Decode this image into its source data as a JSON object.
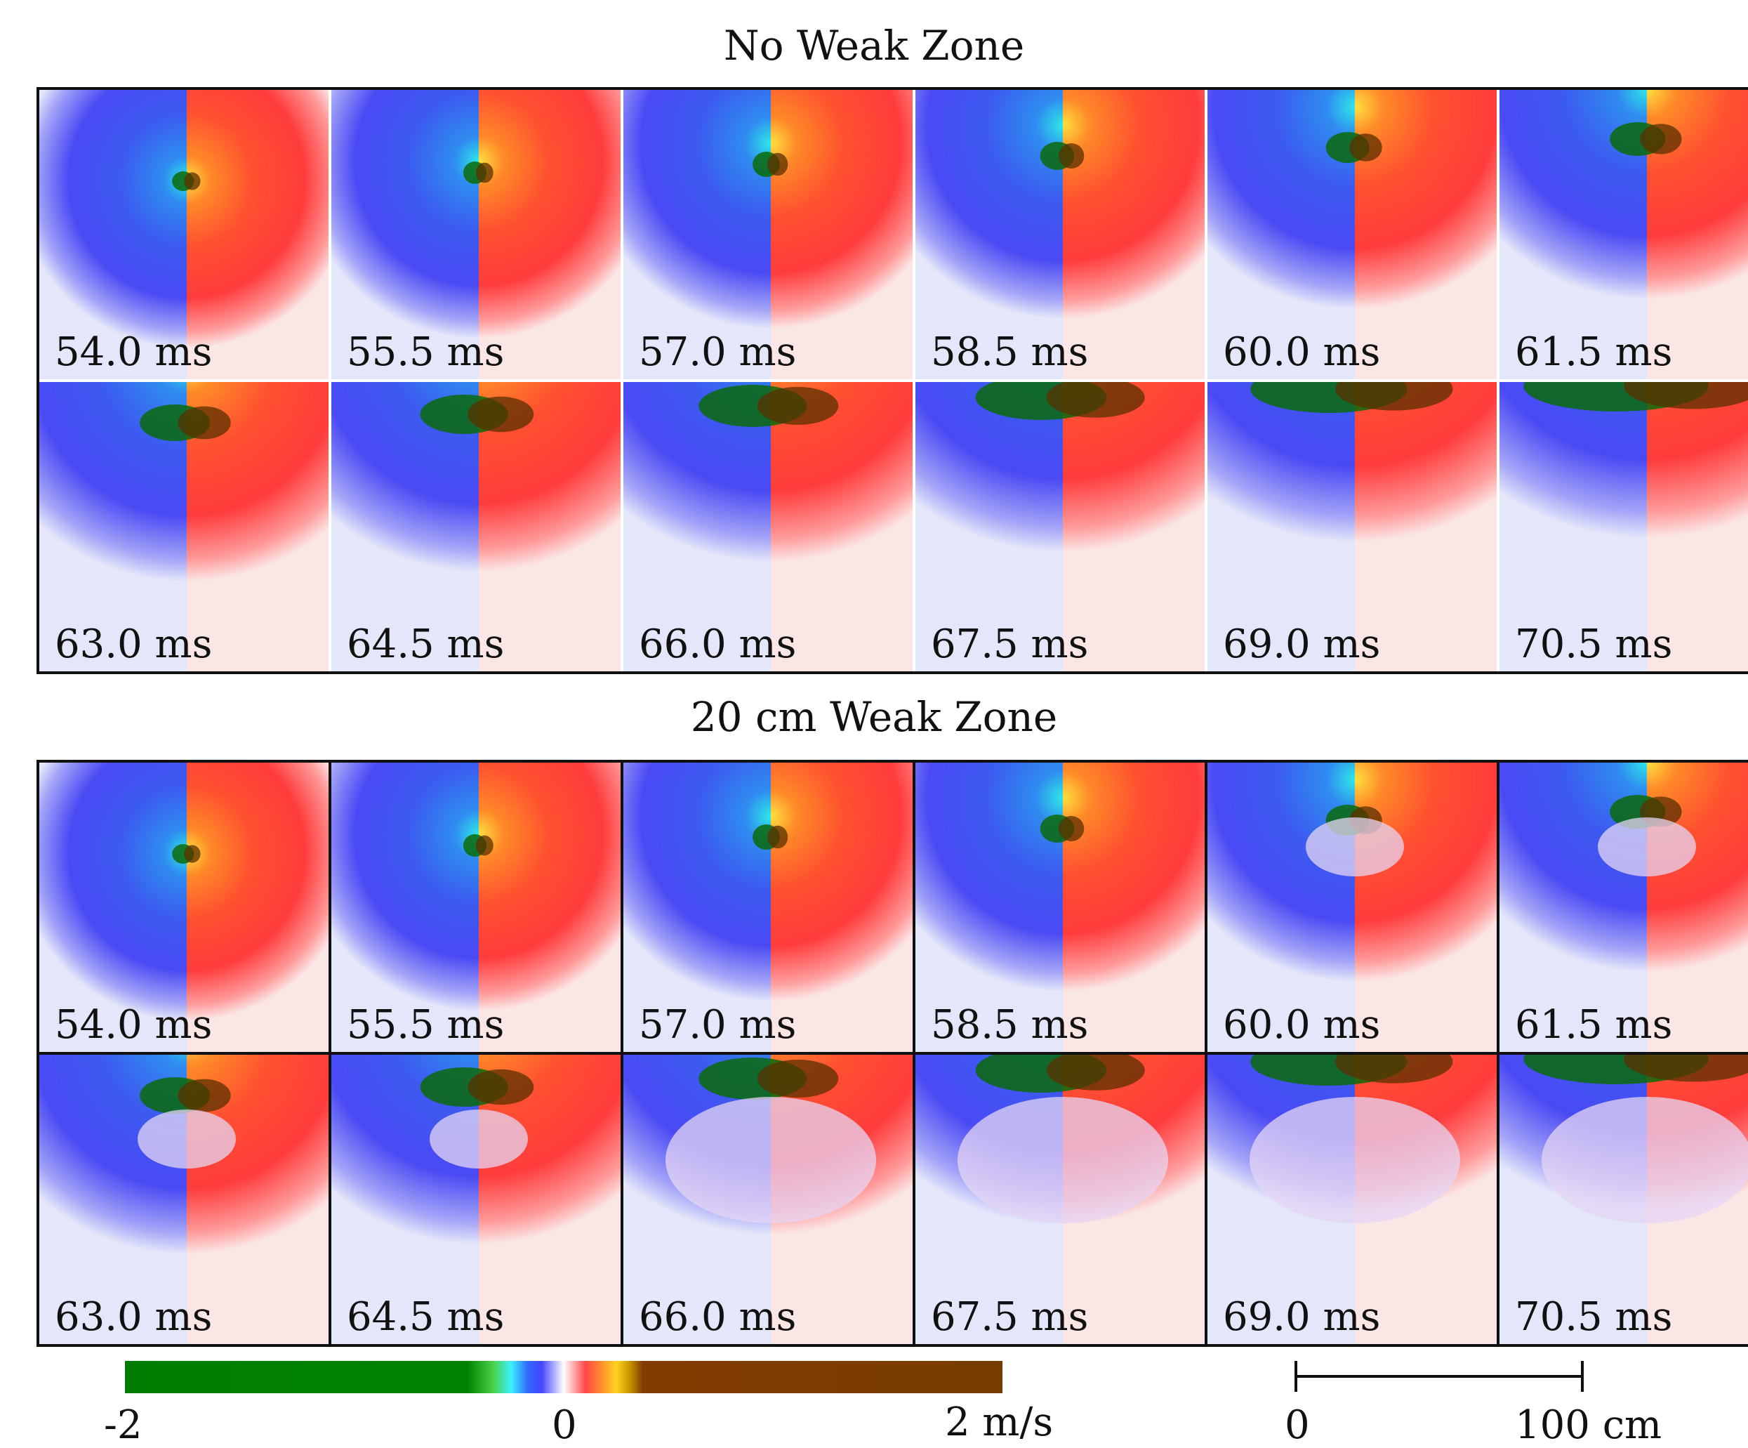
{
  "sections": [
    {
      "title": "No Weak Zone",
      "panels": [
        {
          "label": "54.0 ms",
          "bands": 0
        },
        {
          "label": "55.5 ms",
          "bands": 0
        },
        {
          "label": "57.0 ms",
          "bands": 0
        },
        {
          "label": "58.5 ms",
          "bands": 0
        },
        {
          "label": "60.0 ms",
          "bands": 0
        },
        {
          "label": "61.5 ms",
          "bands": 0
        },
        {
          "label": "63.0 ms",
          "bands": 0
        },
        {
          "label": "64.5 ms",
          "bands": 0
        },
        {
          "label": "66.0 ms",
          "bands": 0
        },
        {
          "label": "67.5 ms",
          "bands": 0
        },
        {
          "label": "69.0 ms",
          "bands": 0
        },
        {
          "label": "70.5 ms",
          "bands": 0
        }
      ]
    },
    {
      "title": "20 cm Weak Zone",
      "panels": [
        {
          "label": "54.0 ms",
          "bands": 0
        },
        {
          "label": "55.5 ms",
          "bands": 0
        },
        {
          "label": "57.0 ms",
          "bands": 0
        },
        {
          "label": "58.5 ms",
          "bands": 0
        },
        {
          "label": "60.0 ms",
          "bands": 1
        },
        {
          "label": "61.5 ms",
          "bands": 1
        },
        {
          "label": "63.0 ms",
          "bands": 1
        },
        {
          "label": "64.5 ms",
          "bands": 1
        },
        {
          "label": "66.0 ms",
          "bands": 2
        },
        {
          "label": "67.5 ms",
          "bands": 2
        },
        {
          "label": "69.0 ms",
          "bands": 2
        },
        {
          "label": "70.5 ms",
          "bands": 2
        }
      ]
    }
  ],
  "colorbar": {
    "min_label": "-2",
    "mid_label": "0",
    "max_label": "2 m/s",
    "colors": [
      "#008200",
      "#3cf0ff",
      "#4646ff",
      "#ffffff",
      "#ff4646",
      "#ffd21e",
      "#783c00"
    ]
  },
  "scalebar": {
    "start_label": "0",
    "end_label": "100 cm"
  }
}
